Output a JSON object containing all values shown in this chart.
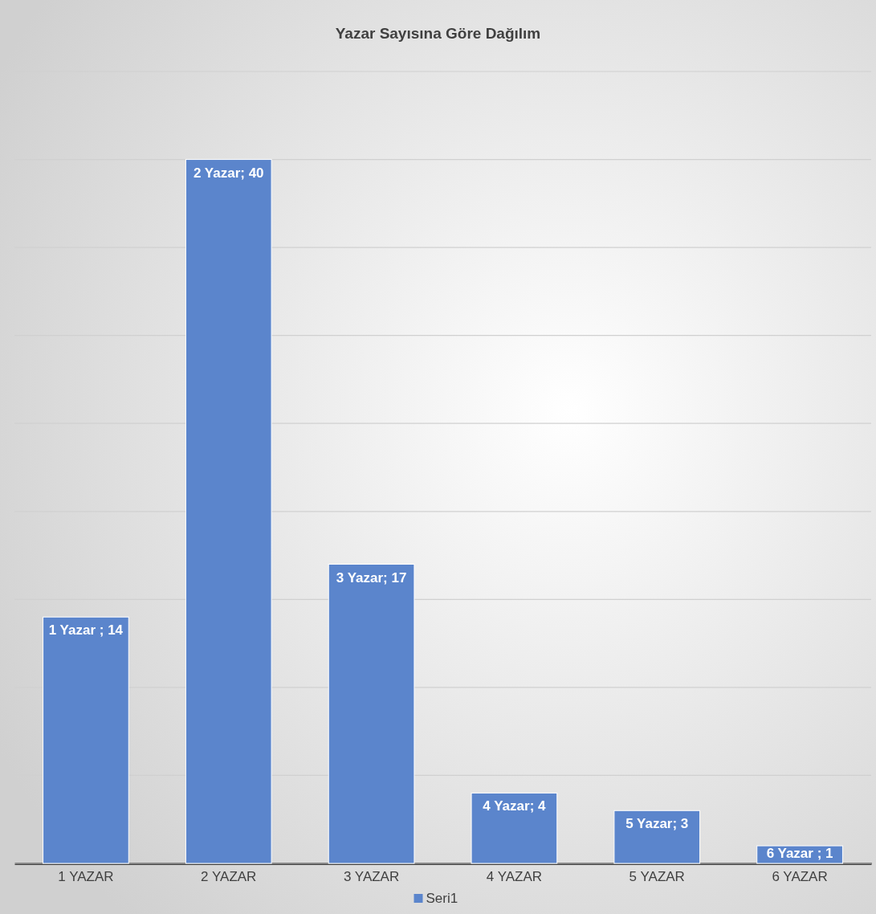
{
  "chart_data": {
    "type": "bar",
    "title": "Yazar Sayısına Göre Dağılım",
    "categories": [
      "1 YAZAR",
      "2 YAZAR",
      "3 YAZAR",
      "4 YAZAR",
      "5 YAZAR",
      "6 YAZAR"
    ],
    "series": [
      {
        "name": "Seri1",
        "color": "#5b85cc",
        "values": [
          14,
          40,
          17,
          4,
          3,
          1
        ],
        "value_labels": [
          "1 Yazar ; 14",
          "2 Yazar; 40",
          "3 Yazar; 17",
          "4 Yazar; 4",
          "5 Yazar; 3",
          "6 Yazar ; 1"
        ]
      }
    ],
    "ylim": [
      0,
      45
    ],
    "yticks": [
      {
        "value": 0,
        "label": null
      },
      {
        "value": 5,
        "label": null
      },
      {
        "value": 10,
        "label": null
      },
      {
        "value": 15,
        "label": null
      },
      {
        "value": 20,
        "label": null
      },
      {
        "value": 25,
        "label": null
      },
      {
        "value": 30,
        "label": null
      },
      {
        "value": 35,
        "label": null
      },
      {
        "value": 40,
        "label": null
      },
      {
        "value": 45,
        "label": null
      }
    ],
    "tick_labels": "x",
    "grid": "y",
    "legend": "bottom"
  }
}
